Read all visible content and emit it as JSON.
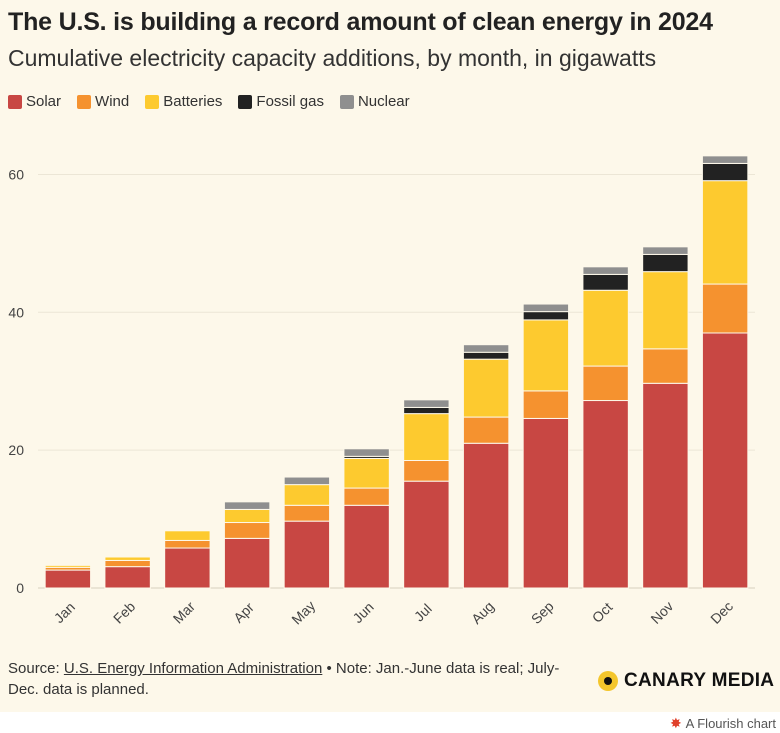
{
  "header": {
    "title": "The U.S. is building a record amount of clean energy in 2024",
    "subtitle": "Cumulative electricity capacity additions, by month, in gigawatts"
  },
  "colors": {
    "Solar": "#c84743",
    "Wind": "#f5922f",
    "Batteries": "#fdca2f",
    "Fossil gas": "#222222",
    "Nuclear": "#8f8f8f",
    "background": "#fdf8ea",
    "gridline": "#ece6d6"
  },
  "chart_data": {
    "type": "bar",
    "stacked": true,
    "categories": [
      "Jan",
      "Feb",
      "Mar",
      "Apr",
      "May",
      "Jun",
      "Jul",
      "Aug",
      "Sep",
      "Oct",
      "Nov",
      "Dec"
    ],
    "series": [
      {
        "name": "Solar",
        "values": [
          2.6,
          3.1,
          5.8,
          7.2,
          9.7,
          12.0,
          15.5,
          21.0,
          24.6,
          27.2,
          29.7,
          37.0
        ]
      },
      {
        "name": "Wind",
        "values": [
          0.4,
          0.9,
          1.1,
          2.3,
          2.3,
          2.5,
          3.0,
          3.8,
          4.0,
          5.0,
          5.0,
          7.1
        ]
      },
      {
        "name": "Batteries",
        "values": [
          0.3,
          0.5,
          1.4,
          1.9,
          3.0,
          4.3,
          6.8,
          8.4,
          10.3,
          11.0,
          11.2,
          15.0
        ]
      },
      {
        "name": "Fossil gas",
        "values": [
          0,
          0,
          0,
          0,
          0,
          0.3,
          0.9,
          1.0,
          1.2,
          2.3,
          2.5,
          2.5
        ]
      },
      {
        "name": "Nuclear",
        "values": [
          0.1,
          0.1,
          0,
          1.1,
          1.1,
          1.1,
          1.1,
          1.1,
          1.1,
          1.1,
          1.1,
          1.1
        ]
      }
    ],
    "xlabel": "",
    "ylabel": "",
    "ylim": [
      0,
      65
    ],
    "yticks": [
      0,
      20,
      40,
      60
    ],
    "grid": true,
    "legend_position": "top-left"
  },
  "footer": {
    "source_prefix": "Source: ",
    "source_link": "U.S. Energy Information Administration",
    "note": " • Note: Jan.-June data is real; July-Dec. data is planned."
  },
  "brand": {
    "name": "CANARY MEDIA"
  },
  "flourish": {
    "label": "A Flourish chart",
    "icon": "flourish-star-icon"
  }
}
